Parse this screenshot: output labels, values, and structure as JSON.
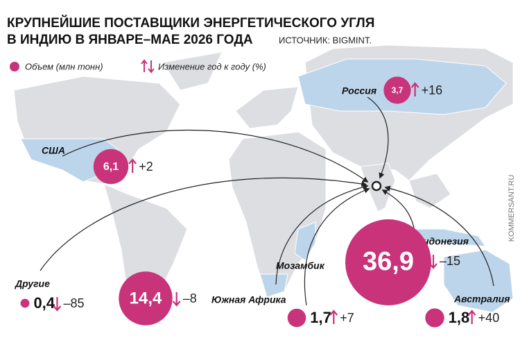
{
  "header": {
    "title_line1": "КРУПНЕЙШИЕ ПОСТАВЩИКИ ЭНЕРГЕТИЧЕСКОГО УГЛЯ",
    "title_line2": "В ИНДИЮ В ЯНВАРЕ–МАЕ 2026 ГОДА",
    "source": "ИСТОЧНИК: BIGMINT."
  },
  "legend": {
    "volume": "Объем (млн тонн)",
    "change": "Изменение год к году (%)"
  },
  "credit": "KOMMERSANT.RU",
  "color": "#c8337a",
  "suppliers": [
    {
      "name": "Россия",
      "volume": 3.7,
      "volume_label": "3,7",
      "change": 16,
      "change_label": "+16"
    },
    {
      "name": "США",
      "volume": 6.1,
      "volume_label": "6,1",
      "change": 2,
      "change_label": "+2"
    },
    {
      "name": "Другие",
      "volume": 0.4,
      "volume_label": "0,4",
      "change": -85,
      "change_label": "–85"
    },
    {
      "name": "Южная Африка",
      "volume": 14.4,
      "volume_label": "14,4",
      "change": -8,
      "change_label": "–8"
    },
    {
      "name": "Индонезия",
      "volume": 36.9,
      "volume_label": "36,9",
      "change": -15,
      "change_label": "–15"
    },
    {
      "name": "Мозамбик",
      "volume": 1.7,
      "volume_label": "1,7",
      "change": 7,
      "change_label": "+7"
    },
    {
      "name": "Австралия",
      "volume": 1.8,
      "volume_label": "1,8",
      "change": 40,
      "change_label": "+40"
    }
  ]
}
